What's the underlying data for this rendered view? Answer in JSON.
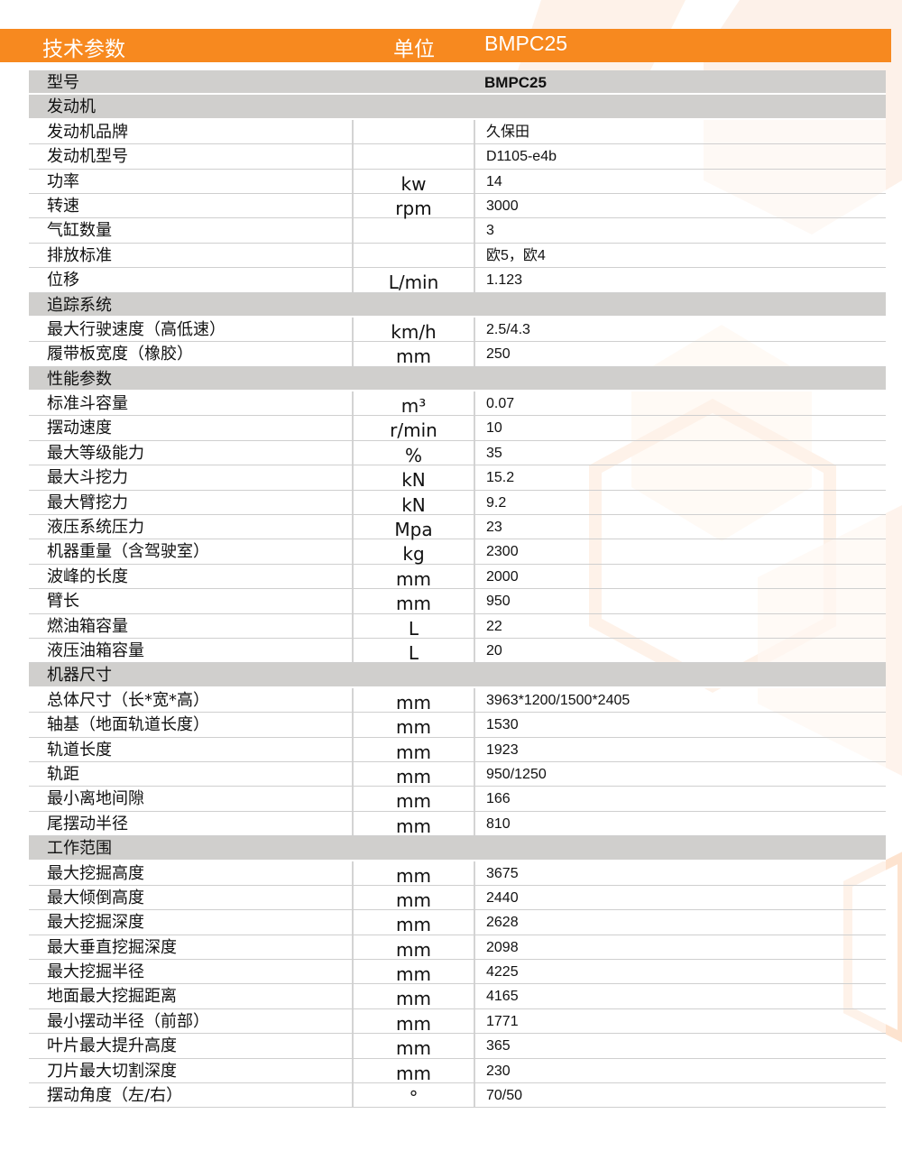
{
  "colors": {
    "accent": "#f7891f",
    "section_bg": "#d0cfcd"
  },
  "header": {
    "param": "技术参数",
    "unit": "单位",
    "model": "BMPC25"
  },
  "model_row": {
    "label": "型号",
    "value": "BMPC25"
  },
  "sections": [
    {
      "title": "发动机",
      "rows": [
        {
          "label": "发动机品牌",
          "unit": "",
          "value": "久保田"
        },
        {
          "label": "发动机型号",
          "unit": "",
          "value": "D1105-e4b"
        },
        {
          "label": "功率",
          "unit": "kw",
          "value": "14"
        },
        {
          "label": "转速",
          "unit": "rpm",
          "value": "3000"
        },
        {
          "label": "气缸数量",
          "unit": "",
          "value": "3"
        },
        {
          "label": "排放标准",
          "unit": "",
          "value": "欧5，欧4"
        },
        {
          "label": "位移",
          "unit": "L/min",
          "value": "1.123"
        }
      ]
    },
    {
      "title": "追踪系统",
      "rows": [
        {
          "label": "最大行驶速度（高低速）",
          "unit": "km/h",
          "value": "2.5/4.3"
        },
        {
          "label": "履带板宽度（橡胶）",
          "unit": "mm",
          "value": "250"
        }
      ]
    },
    {
      "title": "性能参数",
      "rows": [
        {
          "label": "标准斗容量",
          "unit": "m³",
          "value": "0.07"
        },
        {
          "label": "摆动速度",
          "unit": "r/min",
          "value": "10"
        },
        {
          "label": "最大等级能力",
          "unit": "%",
          "value": "35"
        },
        {
          "label": "最大斗挖力",
          "unit": "kN",
          "value": "15.2"
        },
        {
          "label": "最大臂挖力",
          "unit": "kN",
          "value": "9.2"
        },
        {
          "label": "液压系统压力",
          "unit": "Mpa",
          "value": "23"
        },
        {
          "label": "机器重量（含驾驶室）",
          "unit": "kg",
          "value": "2300"
        },
        {
          "label": "波峰的长度",
          "unit": "mm",
          "value": "2000"
        },
        {
          "label": "臂长",
          "unit": "mm",
          "value": "950"
        },
        {
          "label": "燃油箱容量",
          "unit": "L",
          "value": "22"
        },
        {
          "label": "液压油箱容量",
          "unit": "L",
          "value": "20"
        }
      ]
    },
    {
      "title": "机器尺寸",
      "rows": [
        {
          "label": "总体尺寸（长*宽*高）",
          "unit": "mm",
          "value": "3963*1200/1500*2405"
        },
        {
          "label": "轴基（地面轨道长度）",
          "unit": "mm",
          "value": "1530"
        },
        {
          "label": "轨道长度",
          "unit": "mm",
          "value": "1923"
        },
        {
          "label": "轨距",
          "unit": "mm",
          "value": "950/1250"
        },
        {
          "label": "最小离地间隙",
          "unit": "mm",
          "value": "166"
        },
        {
          "label": "尾摆动半径",
          "unit": "mm",
          "value": "810"
        }
      ]
    },
    {
      "title": "工作范围",
      "rows": [
        {
          "label": "最大挖掘高度",
          "unit": "mm",
          "value": "3675"
        },
        {
          "label": "最大倾倒高度",
          "unit": "mm",
          "value": "2440"
        },
        {
          "label": "最大挖掘深度",
          "unit": "mm",
          "value": "2628"
        },
        {
          "label": "最大垂直挖掘深度",
          "unit": "mm",
          "value": "2098"
        },
        {
          "label": "最大挖掘半径",
          "unit": "mm",
          "value": "4225"
        },
        {
          "label": "地面最大挖掘距离",
          "unit": "mm",
          "value": "4165"
        },
        {
          "label": "最小摆动半径（前部）",
          "unit": "mm",
          "value": "1771"
        },
        {
          "label": "叶片最大提升高度",
          "unit": "mm",
          "value": "365"
        },
        {
          "label": "刀片最大切割深度",
          "unit": "mm",
          "value": "230"
        },
        {
          "label": "摆动角度（左/右）",
          "unit": "°",
          "value": "70/50"
        }
      ]
    }
  ]
}
